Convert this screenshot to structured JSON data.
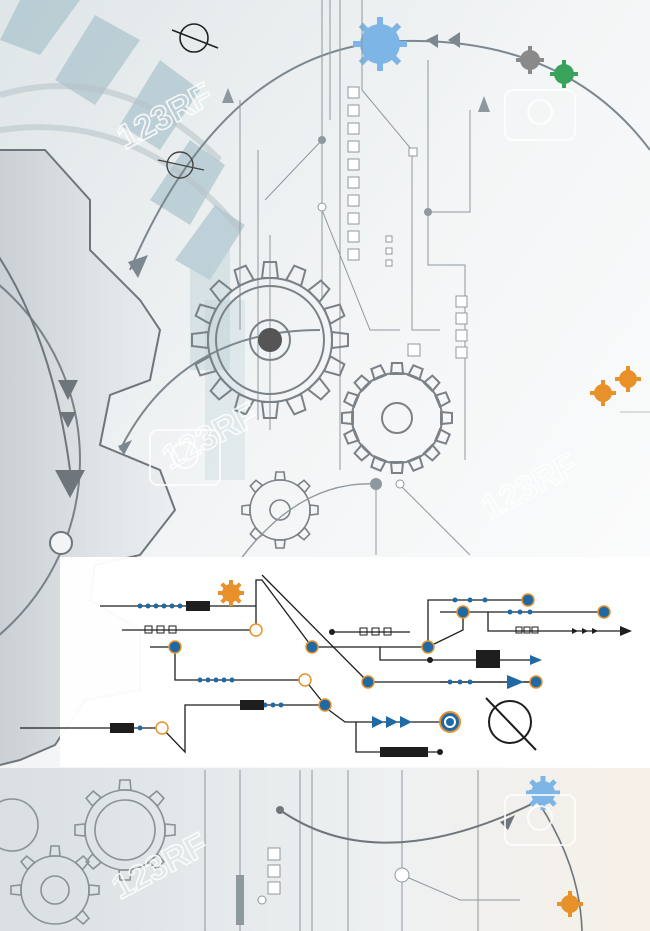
{
  "watermark": {
    "text": "123RF",
    "colors": {
      "stroke": "#ffffff"
    }
  },
  "palette": {
    "gear_fill": "#e6eaec",
    "gear_stroke": "#7a8288",
    "line": "#7c8790",
    "panel_line": "#1e1e1e",
    "accent_blue": "#1f6aa5",
    "accent_orange": "#e8912a",
    "accent_green": "#3aa35b",
    "accent_lightblue": "#7db6e6",
    "teal_block": "#9bb9c4"
  },
  "icons": [
    "gear-icon",
    "diameter-symbol-icon",
    "arrow-icon",
    "watermark-logo-icon"
  ]
}
